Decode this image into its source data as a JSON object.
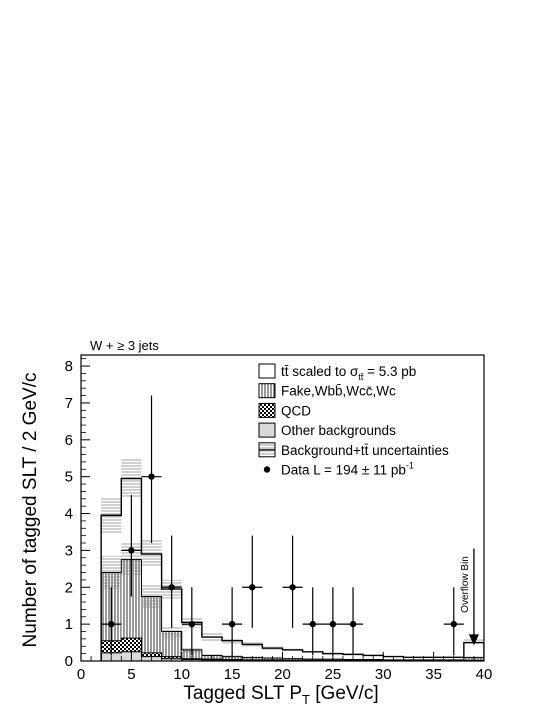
{
  "chart_data": {
    "type": "bar",
    "title": "W + ≥ 3 jets",
    "xlabel": "Tagged SLT P_T [GeV/c]",
    "xlabel_parts": {
      "main": "Tagged SLT P",
      "sub": "T",
      "rest": " [GeV/c]"
    },
    "ylabel": "Number of tagged SLT / 2 GeV/c",
    "xlim": [
      0,
      40
    ],
    "ylim": [
      0,
      8.3
    ],
    "xticks": [
      0,
      5,
      10,
      15,
      20,
      25,
      30,
      35,
      40
    ],
    "xtick_labels": [
      "0",
      "5",
      "10",
      "15",
      "20",
      "25",
      "30",
      "35",
      "40"
    ],
    "yticks": [
      0,
      1,
      2,
      3,
      4,
      5,
      6,
      7,
      8
    ],
    "ytick_labels": [
      "0",
      "1",
      "2",
      "3",
      "4",
      "5",
      "6",
      "7",
      "8"
    ],
    "grid": false,
    "legend_position": "top-right",
    "bin_edges": [
      2,
      4,
      6,
      8,
      10,
      12,
      14,
      16,
      18,
      20,
      22,
      24,
      26,
      28,
      30,
      32,
      34,
      36,
      38,
      40
    ],
    "series": [
      {
        "name": "tt̄ scaled to σtt̄ = 5.3 pb",
        "kind": "total-outline",
        "values": [
          3.95,
          4.95,
          2.9,
          1.95,
          1.05,
          0.65,
          0.55,
          0.45,
          0.35,
          0.3,
          0.25,
          0.2,
          0.18,
          0.15,
          0.12,
          0.1,
          0.1,
          0.1,
          0.5
        ]
      },
      {
        "name": "Fake,Wbb̄,Wcc̄,Wc",
        "kind": "vertical-hatch",
        "values": [
          2.4,
          2.75,
          1.75,
          0.8,
          0.3,
          0.15,
          0.12,
          0.1,
          0.08,
          0.06,
          0.05,
          0.05,
          0.04,
          0.04,
          0.03,
          0.03,
          0.03,
          0.03,
          0.1
        ]
      },
      {
        "name": "QCD",
        "kind": "checker",
        "values": [
          0.55,
          0.62,
          0.22,
          0.12,
          0.06,
          0.05,
          0.04,
          0.03,
          0.03,
          0.02,
          0.02,
          0.02,
          0.02,
          0.02,
          0.01,
          0.01,
          0.01,
          0.01,
          0.02
        ]
      },
      {
        "name": "Other backgrounds",
        "kind": "gray-fill",
        "values": [
          0.22,
          0.25,
          0.12,
          0.06,
          0.04,
          0.03,
          0.02,
          0.02,
          0.02,
          0.01,
          0.01,
          0.01,
          0.01,
          0.01,
          0.01,
          0.01,
          0.01,
          0.01,
          0.01
        ]
      }
    ],
    "uncertainty_band": {
      "name": "Background+tt̄ uncertainties",
      "total_up": [
        4.45,
        5.5,
        3.3,
        2.2,
        1.2,
        0.75,
        0.62,
        0.5,
        0.4,
        0.33,
        0.28,
        0.22,
        0.2,
        0.17,
        0.14,
        0.12,
        0.12,
        0.12,
        0.58
      ],
      "total_down": [
        3.45,
        4.45,
        2.55,
        1.7,
        0.9,
        0.55,
        0.48,
        0.4,
        0.3,
        0.27,
        0.22,
        0.18,
        0.16,
        0.13,
        0.1,
        0.08,
        0.08,
        0.08,
        0.42
      ],
      "bkg_up": [
        2.85,
        3.2,
        2.05,
        0.95,
        0.38,
        0.2,
        0.16,
        0.13,
        0.1,
        0.08,
        0.07,
        0.06,
        0.05,
        0.05,
        0.04,
        0.04,
        0.04,
        0.04,
        0.14
      ],
      "bkg_down": [
        1.95,
        2.3,
        1.45,
        0.65,
        0.22,
        0.1,
        0.08,
        0.07,
        0.06,
        0.04,
        0.03,
        0.04,
        0.03,
        0.03,
        0.02,
        0.02,
        0.02,
        0.02,
        0.06
      ]
    },
    "data_points": {
      "name": "Data L = 194 ± 11 pb⁻¹",
      "x": [
        3,
        5,
        7,
        9,
        11,
        15,
        17,
        21,
        23,
        25,
        27,
        37
      ],
      "y": [
        1,
        3,
        5,
        2,
        1,
        1,
        2,
        2,
        1,
        1,
        1,
        1
      ],
      "err_up": [
        1.0,
        1.5,
        2.2,
        1.4,
        1.0,
        1.0,
        1.4,
        1.4,
        1.0,
        1.0,
        1.0,
        1.0
      ],
      "err_down": [
        0.85,
        1.25,
        1.8,
        1.1,
        0.85,
        0.85,
        1.1,
        1.1,
        0.85,
        0.85,
        0.85,
        0.85
      ],
      "xerr": 1
    },
    "legend": [
      {
        "kind": "total-outline",
        "label_main": "tt̄ scaled to σ",
        "label_sub": "tt̄",
        "label_rest": " = 5.3 pb"
      },
      {
        "kind": "vertical-hatch",
        "label_main": "Fake,Wbb̄,Wcc̄,Wc",
        "label_sub": "",
        "label_rest": ""
      },
      {
        "kind": "checker",
        "label_main": "QCD",
        "label_sub": "",
        "label_rest": ""
      },
      {
        "kind": "gray-fill",
        "label_main": "Other backgrounds",
        "label_sub": "",
        "label_rest": ""
      },
      {
        "kind": "uncertainty",
        "label_main": "Background+tt̄ uncertainties",
        "label_sub": "",
        "label_rest": ""
      },
      {
        "kind": "data-marker",
        "label_main": "Data L = 194 ± 11 pb",
        "label_sub": "",
        "label_rest": "",
        "label_sup": "-1"
      }
    ],
    "annotations": [
      {
        "text": "Overflow Bin",
        "x": 39,
        "arrow_from_y": 3.05,
        "arrow_to_y": 0.45
      }
    ]
  }
}
